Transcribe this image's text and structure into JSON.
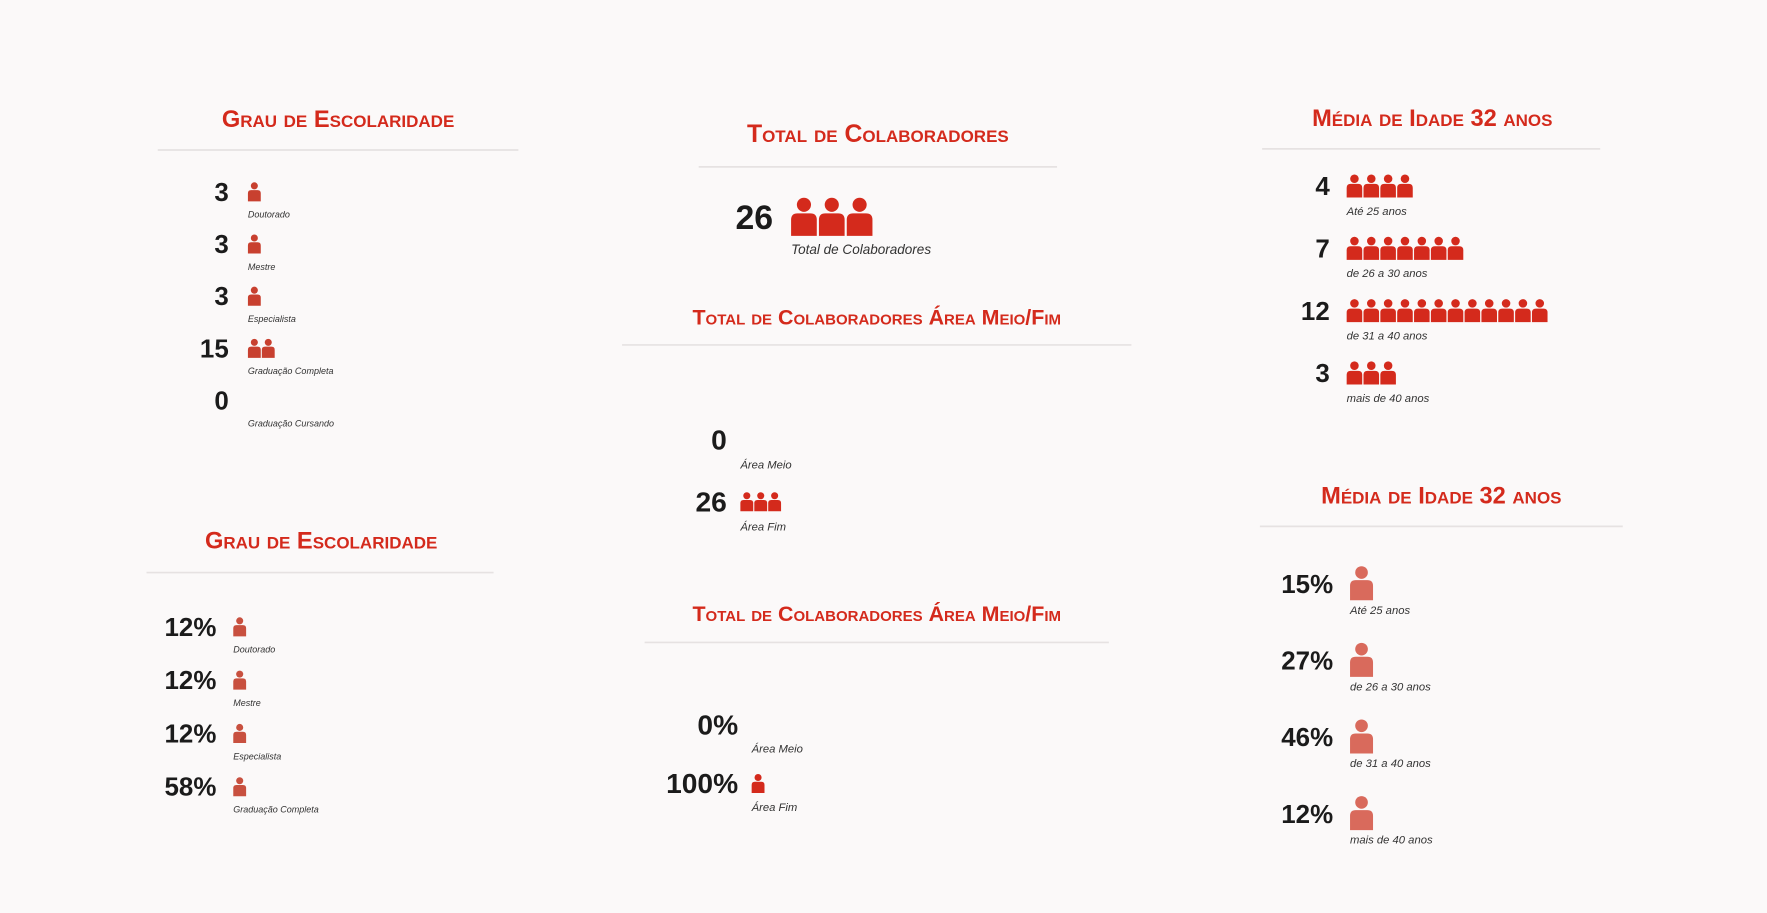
{
  "panels": [
    {
      "title": "Grau de Escolaridade",
      "items": [
        {
          "value": 3,
          "label": "Doutorado"
        },
        {
          "value": 3,
          "label": "Mestre"
        },
        {
          "value": 3,
          "label": "Especialista"
        },
        {
          "value": 15,
          "label": "Graduação Completa"
        },
        {
          "value": 0,
          "label": "Graduação Cursando"
        }
      ]
    },
    {
      "title": "Grau de Escolaridade",
      "items": [
        {
          "value": "12%",
          "label": "Doutorado"
        },
        {
          "value": "12%",
          "label": "Mestre"
        },
        {
          "value": "12%",
          "label": "Especialista"
        },
        {
          "value": "58%",
          "label": "Graduação Completa"
        }
      ]
    },
    {
      "title": "Total de Colaboradores",
      "items": [
        {
          "value": 26,
          "label": "Total de Colaboradores"
        }
      ]
    },
    {
      "title": "Total de Colaboradores Área Meio/Fim",
      "items": [
        {
          "value": 0,
          "label": "Área Meio"
        },
        {
          "value": 26,
          "label": "Área Fim"
        }
      ]
    },
    {
      "title": "Total de Colaboradores Área Meio/Fim",
      "items": [
        {
          "value": "0%",
          "label": "Área Meio"
        },
        {
          "value": "100%",
          "label": "Área Fim"
        }
      ]
    },
    {
      "title": "Média de Idade 32 anos",
      "items": [
        {
          "value": 4,
          "label": "Até 25 anos"
        },
        {
          "value": 7,
          "label": "de 26 a 30 anos"
        },
        {
          "value": 12,
          "label": "de 31 a 40 anos"
        },
        {
          "value": 3,
          "label": "mais de 40 anos"
        }
      ]
    },
    {
      "title": "Média de Idade 32 anos",
      "items": [
        {
          "value": "15%",
          "label": "Até 25 anos"
        },
        {
          "value": "27%",
          "label": "de 26 a 30 anos"
        },
        {
          "value": "46%",
          "label": "de 31 a 40 anos"
        },
        {
          "value": "12%",
          "label": "mais de 40 anos"
        }
      ]
    }
  ]
}
